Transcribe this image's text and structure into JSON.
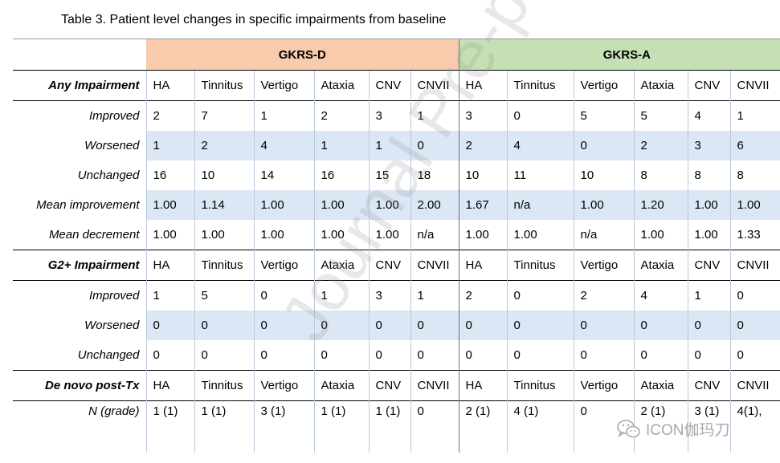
{
  "caption": "Table 3. Patient level changes in specific impairments from baseline",
  "groups": {
    "d": "GKRS-D",
    "a": "GKRS-A"
  },
  "sections": [
    {
      "title": "Any Impairment",
      "columns": [
        "HA",
        "Tinnitus",
        "Vertigo",
        "Ataxia",
        "CNV",
        "CNVII",
        "HA",
        "Tinnitus",
        "Vertigo",
        "Ataxia",
        "CNV",
        "CNVII"
      ],
      "rows": [
        {
          "label": "Improved",
          "values": [
            "2",
            "7",
            "1",
            "2",
            "3",
            "1",
            "3",
            "0",
            "5",
            "5",
            "4",
            "1"
          ]
        },
        {
          "label": "Worsened",
          "values": [
            "1",
            "2",
            "4",
            "1",
            "1",
            "0",
            "2",
            "4",
            "0",
            "2",
            "3",
            "6"
          ]
        },
        {
          "label": "Unchanged",
          "values": [
            "16",
            "10",
            "14",
            "16",
            "15",
            "18",
            "10",
            "11",
            "10",
            "8",
            "8",
            "8"
          ]
        },
        {
          "label": "Mean improvement",
          "values": [
            "1.00",
            "1.14",
            "1.00",
            "1.00",
            "1.00",
            "2.00",
            "1.67",
            "n/a",
            "1.00",
            "1.20",
            "1.00",
            "1.00"
          ]
        },
        {
          "label": "Mean decrement",
          "values": [
            "1.00",
            "1.00",
            "1.00",
            "1.00",
            "1.00",
            "n/a",
            "1.00",
            "1.00",
            "n/a",
            "1.00",
            "1.00",
            "1.33"
          ]
        }
      ]
    },
    {
      "title": "G2+ Impairment",
      "columns": [
        "HA",
        "Tinnitus",
        "Vertigo",
        "Ataxia",
        "CNV",
        "CNVII",
        "HA",
        "Tinnitus",
        "Vertigo",
        "Ataxia",
        "CNV",
        "CNVII"
      ],
      "rows": [
        {
          "label": "Improved",
          "values": [
            "1",
            "5",
            "0",
            "1",
            "3",
            "1",
            "2",
            "0",
            "2",
            "4",
            "1",
            "0"
          ]
        },
        {
          "label": "Worsened",
          "values": [
            "0",
            "0",
            "0",
            "0",
            "0",
            "0",
            "0",
            "0",
            "0",
            "0",
            "0",
            "0"
          ]
        },
        {
          "label": "Unchanged",
          "values": [
            "0",
            "0",
            "0",
            "0",
            "0",
            "0",
            "0",
            "0",
            "0",
            "0",
            "0",
            "0"
          ]
        }
      ]
    },
    {
      "title": "De novo post-Tx",
      "columns": [
        "HA",
        "Tinnitus",
        "Vertigo",
        "Ataxia",
        "CNV",
        "CNVII",
        "HA",
        "Tinnitus",
        "Vertigo",
        "Ataxia",
        "CNV",
        "CNVII"
      ],
      "rows": [
        {
          "label": "N (grade)",
          "values": [
            "1 (1)",
            "1 (1)",
            "3 (1)",
            "1 (1)",
            "1 (1)",
            "0",
            "2 (1)",
            "4 (1)",
            "0",
            "2 (1)",
            "3 (1)",
            "4(1),"
          ]
        }
      ]
    }
  ],
  "watermark": "Journal Pre-proof",
  "logo_text": "ICON伽玛刀",
  "logo_icon": "wechat-icon"
}
